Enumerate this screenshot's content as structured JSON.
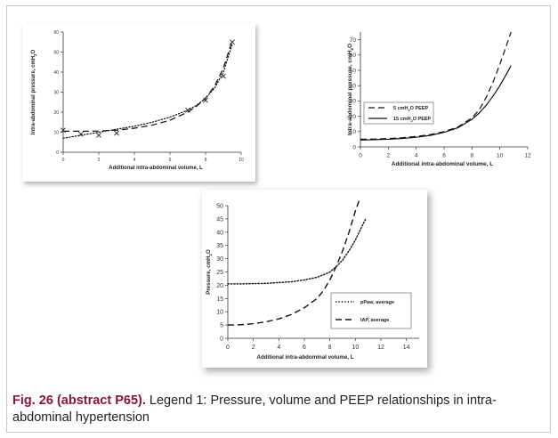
{
  "chart_data": [
    {
      "type": "line",
      "xlabel": "Additional intra-abdominal volume, L",
      "ylabel": "Intra-abdominal pressure, cmH2O",
      "xlim": [
        0,
        10
      ],
      "ylim": [
        0,
        60
      ],
      "xticks": [
        0,
        2,
        4,
        6,
        8,
        10
      ],
      "yticks": [
        0,
        10,
        20,
        30,
        40,
        50,
        60
      ],
      "markers": {
        "name": "",
        "x": [
          0,
          1,
          2,
          3,
          7,
          8,
          9,
          9.5
        ],
        "y": [
          11,
          9,
          8.5,
          9.5,
          21,
          26,
          38,
          55
        ]
      },
      "series": [
        {
          "style": "dashed",
          "x": [
            0,
            1,
            2,
            3,
            4,
            5,
            6,
            7,
            7.5,
            8,
            8.5,
            9,
            9.5
          ],
          "y": [
            10.5,
            10.5,
            10.6,
            11,
            12,
            13.5,
            16,
            20,
            23,
            27,
            33,
            42,
            56
          ]
        },
        {
          "style": "dotted",
          "x": [
            0,
            1,
            2,
            3,
            4,
            5,
            6,
            7,
            7.5,
            8,
            8.5,
            9,
            9.5
          ],
          "y": [
            7,
            8.5,
            10,
            11.5,
            13,
            15,
            17.5,
            21,
            23.5,
            27,
            32,
            40,
            54
          ]
        }
      ]
    },
    {
      "type": "line",
      "xlabel": "Additional intra-abdominal volume, L",
      "ylabel": "Intra-abdominal pressure, cmH2O",
      "xlim": [
        0,
        12
      ],
      "ylim": [
        0,
        75
      ],
      "xticks": [
        0,
        2,
        4,
        6,
        8,
        10,
        12
      ],
      "yticks": [
        0,
        10,
        20,
        30,
        40,
        50,
        60,
        70
      ],
      "legend": {
        "position": "middle-left",
        "entries": [
          "5 cmH2O PEEP",
          "15 cmH2O PEEP"
        ]
      },
      "series": [
        {
          "name": "5 cmH2O PEEP",
          "style": "dashed",
          "x": [
            0,
            1,
            2,
            3,
            4,
            5,
            6,
            7,
            8,
            8.5,
            9,
            9.5,
            10,
            10.5,
            10.8
          ],
          "y": [
            5,
            5.1,
            5.4,
            6,
            6.8,
            8,
            10,
            13,
            19,
            24,
            32,
            42,
            54,
            67,
            75
          ]
        },
        {
          "name": "15 cmH2O PEEP",
          "style": "solid",
          "x": [
            0,
            1,
            2,
            3,
            4,
            5,
            6,
            7,
            8,
            8.5,
            9,
            9.5,
            10,
            10.5,
            10.8
          ],
          "y": [
            4.5,
            4.7,
            5,
            5.5,
            6.3,
            7.5,
            9.5,
            12.5,
            18,
            22,
            27,
            33,
            40,
            48,
            53
          ]
        }
      ]
    },
    {
      "type": "line",
      "xlabel": "Additional intra-abdominal volume, L",
      "ylabel": "Pressure, cmH2O",
      "xlim": [
        0,
        15
      ],
      "ylim": [
        0,
        50
      ],
      "xticks": [
        0,
        2,
        4,
        6,
        8,
        10,
        12,
        14
      ],
      "yticks": [
        0,
        5,
        10,
        15,
        20,
        25,
        30,
        35,
        40,
        45,
        50
      ],
      "legend": {
        "position": "bottom-right",
        "entries": [
          "pPaw, average",
          "IAP, average"
        ]
      },
      "series": [
        {
          "name": "pPaw, average",
          "style": "dotted",
          "x": [
            0,
            1,
            2,
            3,
            4,
            5,
            6,
            7,
            8,
            8.5,
            9,
            9.5,
            10,
            10.5,
            10.8
          ],
          "y": [
            20.5,
            20.5,
            20.6,
            20.7,
            21,
            21.3,
            22,
            23,
            25,
            27,
            29.5,
            33,
            37,
            42,
            45
          ]
        },
        {
          "name": "IAP, average",
          "style": "dashed",
          "x": [
            0,
            1,
            2,
            3,
            4,
            5,
            6,
            7,
            7.5,
            8,
            8.5,
            9,
            9.5,
            10,
            10.3
          ],
          "y": [
            5,
            5.1,
            5.5,
            6.2,
            7.3,
            9,
            11.5,
            15,
            18,
            22,
            27,
            33,
            40,
            48,
            52
          ]
        }
      ]
    }
  ],
  "caption": {
    "label": "Fig. 26 (abstract P65).",
    "text": " Legend 1: Pressure, volume and PEEP relationships in intra-abdominal hypertension"
  }
}
